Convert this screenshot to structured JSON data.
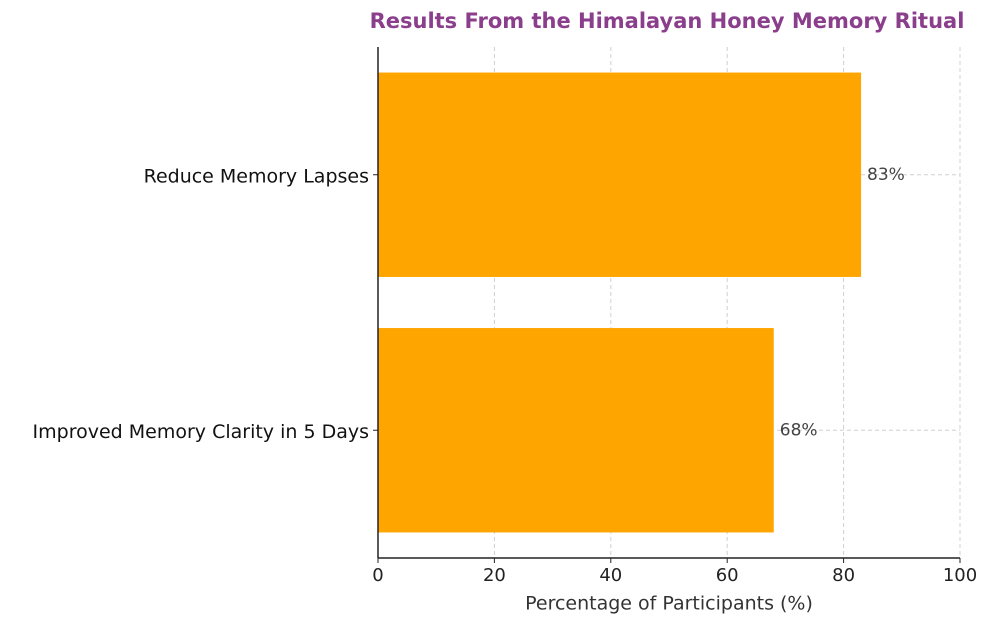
{
  "chart_data": {
    "type": "barh",
    "title": "Results From the Himalayan Honey Memory Ritual",
    "categories": [
      "Reduce Memory Lapses",
      "Improved Memory Clarity in 5 Days"
    ],
    "values": [
      83,
      68
    ],
    "value_labels": [
      "83%",
      "68%"
    ],
    "color": "#ffa500",
    "xlabel": "Percentage of Participants (%)",
    "xlim": [
      0,
      100
    ],
    "xticks": [
      0,
      20,
      40,
      60,
      80,
      100
    ],
    "grid": true
  }
}
